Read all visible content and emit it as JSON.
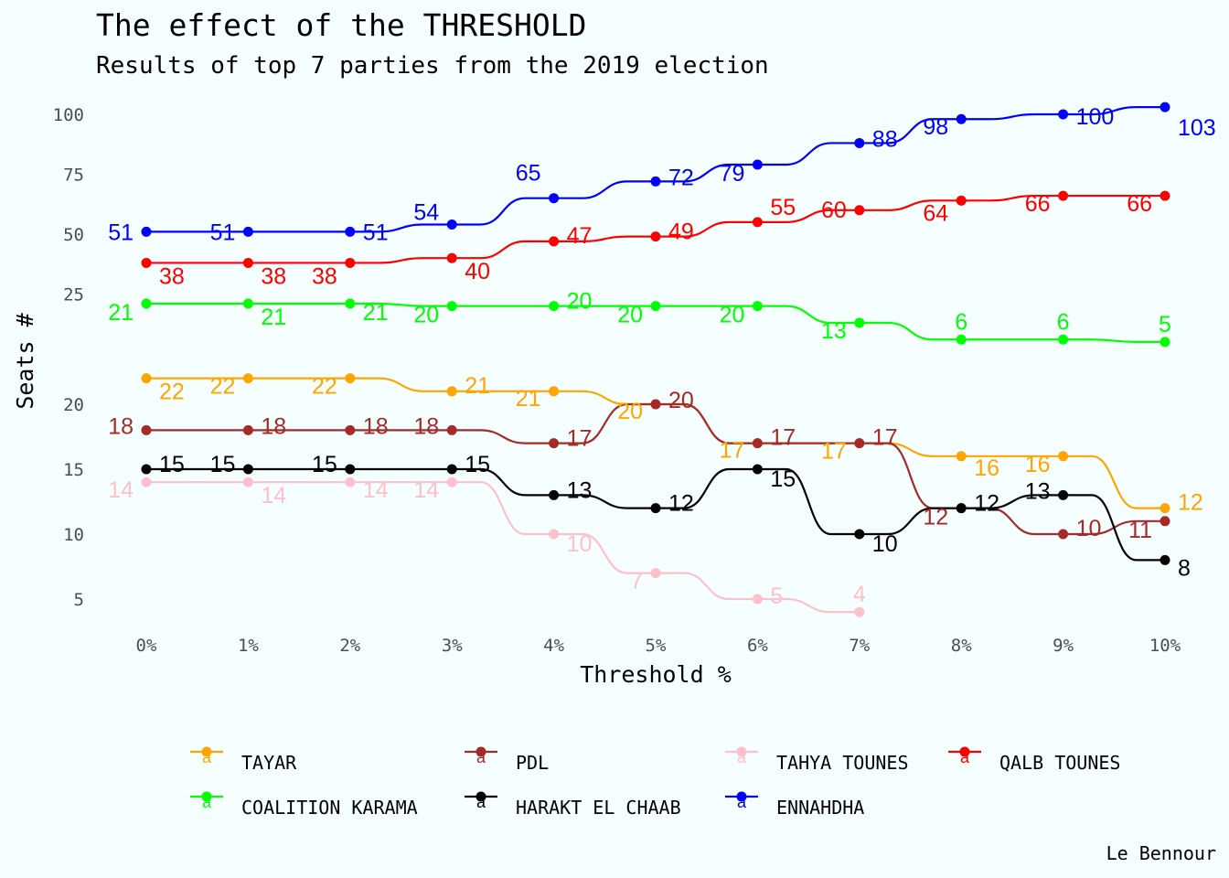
{
  "title": "The effect of the THRESHOLD",
  "subtitle": "Results of top 7 parties from the 2019 election",
  "caption": "Le Bennour",
  "legend_key_glyph": "a",
  "chart_data": {
    "type": "line",
    "xlabel": "Threshold %",
    "ylabel": "Seats #",
    "x": [
      0,
      1,
      2,
      3,
      4,
      5,
      6,
      7,
      8,
      9,
      10
    ],
    "x_tick_labels": [
      "0%",
      "1%",
      "2%",
      "3%",
      "4%",
      "5%",
      "6%",
      "7%",
      "8%",
      "9%",
      "10%"
    ],
    "y_tick_labels": [
      "100",
      "75",
      "50",
      "25",
      "20",
      "15",
      "10",
      "5"
    ],
    "grid": false,
    "legend_position": "bottom",
    "series": [
      {
        "name": "TAYAR",
        "color": "#FFA500",
        "values": [
          22,
          22,
          22,
          21,
          21,
          20,
          17,
          17,
          16,
          16,
          12
        ]
      },
      {
        "name": "PDL",
        "color": "#A52A2A",
        "values": [
          18,
          18,
          18,
          18,
          17,
          20,
          17,
          17,
          12,
          10,
          11
        ]
      },
      {
        "name": "TAHYA TOUNES",
        "color": "#FFC0CB",
        "values": [
          14,
          14,
          14,
          14,
          10,
          7,
          5,
          4,
          null,
          null,
          null
        ]
      },
      {
        "name": "QALB TOUNES",
        "color": "#FF0000",
        "values": [
          38,
          38,
          38,
          40,
          47,
          49,
          55,
          60,
          64,
          66,
          66
        ]
      },
      {
        "name": "COALITION KARAMA",
        "color": "#00FF00",
        "values": [
          21,
          21,
          21,
          20,
          20,
          20,
          20,
          13,
          6,
          6,
          5
        ]
      },
      {
        "name": "HARAKT EL CHAAB",
        "color": "#000000",
        "values": [
          15,
          15,
          15,
          15,
          13,
          12,
          15,
          10,
          12,
          13,
          8
        ]
      },
      {
        "name": "ENNAHDHA",
        "color": "#0000FF",
        "values": [
          51,
          51,
          51,
          54,
          65,
          72,
          79,
          88,
          98,
          100,
          103
        ]
      }
    ]
  }
}
